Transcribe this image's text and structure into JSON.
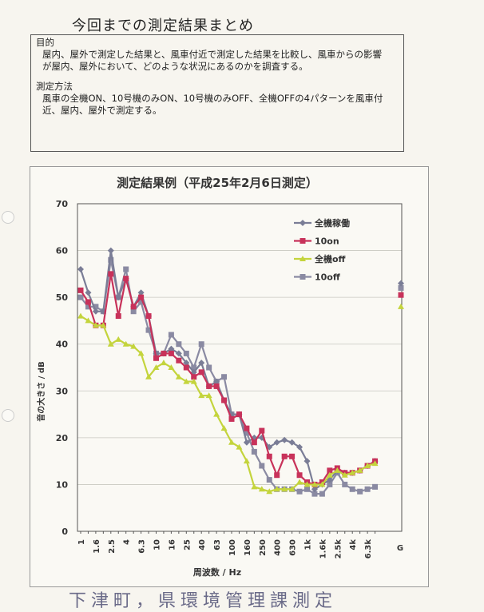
{
  "document": {
    "title": "今回までの測定結果まとめ",
    "purpose_heading": "目的",
    "purpose_line1": "屋内、屋外で測定した結果と、風車付近で測定した結果を比較し、風車からの影響",
    "purpose_line2": "が屋内、屋外において、どのような状況にあるのかを調査する。",
    "method_heading": "測定方法",
    "method_line1": "風車の全機ON、10号機のみON、10号機のみOFF、全機OFFの4パターンを風車付",
    "method_line2": "近、屋内、屋外で測定する。",
    "handwritten_note": "下津町，県環境管理課測定"
  },
  "chart_data": {
    "type": "line",
    "title": "測定結果例（平成25年2月6日測定）",
    "xlabel": "周波数 / Hz",
    "ylabel": "音の大きさ / dB",
    "ylim": [
      0,
      70
    ],
    "yticks": [
      0,
      10,
      20,
      30,
      40,
      50,
      60,
      70
    ],
    "grid": true,
    "legend_position": "top-right",
    "x": [
      "1",
      "1.25",
      "1.6",
      "2",
      "2.5",
      "3.15",
      "4",
      "5",
      "6.3",
      "8",
      "10",
      "12.5",
      "16",
      "20",
      "25",
      "31.5",
      "40",
      "50",
      "63",
      "80",
      "100",
      "125",
      "160",
      "200",
      "250",
      "315",
      "400",
      "500",
      "630",
      "800",
      "1k",
      "1.25k",
      "1.6k",
      "2k",
      "2.5k",
      "3.15k",
      "4k",
      "5k",
      "6.3k",
      "8k"
    ],
    "xtick_labels": [
      "1",
      "1.6",
      "2.5",
      "4",
      "6.3",
      "10",
      "16",
      "25",
      "40",
      "63",
      "100",
      "160",
      "250",
      "400",
      "630",
      "1k",
      "1.6k",
      "2.5k",
      "4k",
      "6.3k"
    ],
    "extra_category": "G",
    "series": [
      {
        "name": "全機稼働",
        "color": "#7a7d96",
        "marker": "diamond",
        "values": [
          56,
          51,
          47,
          47,
          60,
          50,
          54,
          48,
          51,
          46,
          38,
          38,
          39,
          38,
          36,
          34,
          36,
          31,
          32,
          28,
          25,
          25,
          19,
          20,
          20,
          18,
          19,
          19.5,
          19,
          18,
          15,
          9,
          10,
          11,
          13,
          12.5,
          12.5,
          13,
          14,
          15
        ],
        "G": 53
      },
      {
        "name": "10on",
        "color": "#c8325a",
        "marker": "square",
        "values": [
          51.5,
          49,
          44,
          44,
          55,
          46,
          54,
          48,
          50,
          46,
          37,
          38,
          38,
          36.5,
          35,
          33,
          34,
          31,
          31,
          28,
          24,
          25,
          22,
          19,
          21.5,
          16,
          12,
          16,
          16,
          12,
          10.5,
          10,
          10.5,
          13,
          13.5,
          12.5,
          12.5,
          13,
          14,
          15
        ],
        "G": 50.5
      },
      {
        "name": "全機off",
        "color": "#c4d43c",
        "marker": "triangle",
        "values": [
          46,
          45,
          44,
          44,
          40,
          41,
          40,
          39.5,
          38,
          33,
          35,
          36,
          35,
          33,
          32,
          32,
          29,
          29,
          25,
          22,
          19,
          18,
          15,
          9.5,
          9,
          8.5,
          9,
          9,
          9,
          10.5,
          10,
          10,
          10,
          12,
          13,
          12,
          12.5,
          13,
          14,
          14.5
        ],
        "G": 48
      },
      {
        "name": "10off",
        "color": "#8a8aa2",
        "marker": "square",
        "values": [
          50,
          48,
          48,
          47,
          58,
          50,
          56,
          47,
          49,
          43,
          38,
          38,
          42,
          40,
          38,
          35,
          40,
          35,
          32,
          33,
          25,
          25,
          21,
          17,
          14,
          11,
          9,
          9,
          9,
          8.5,
          9,
          8,
          8,
          10,
          12.5,
          10,
          9,
          8.5,
          9,
          9.5
        ],
        "G": 52
      }
    ]
  }
}
